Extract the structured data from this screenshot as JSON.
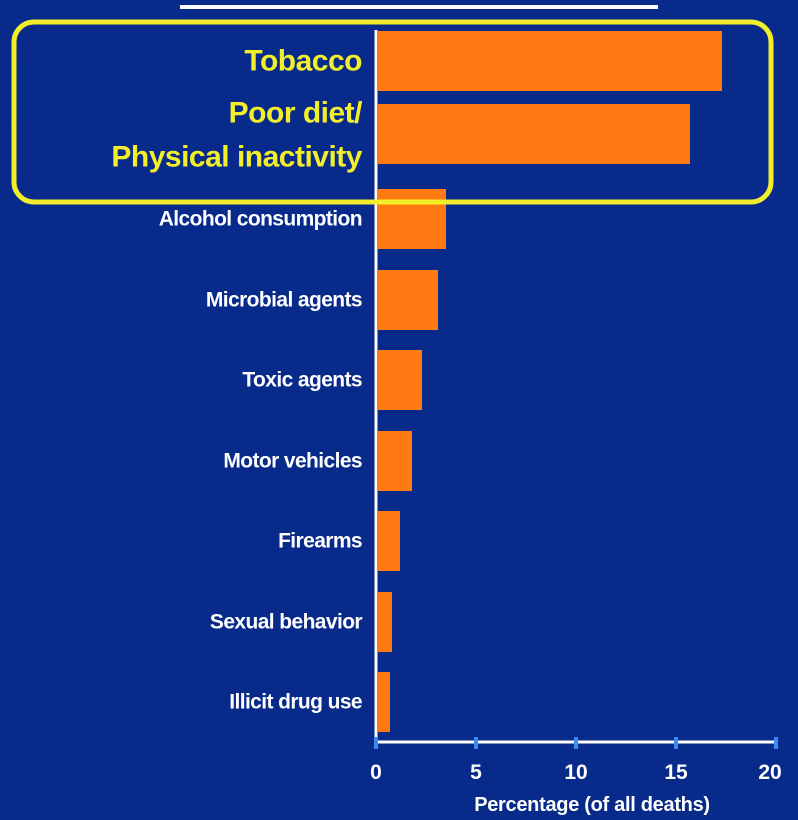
{
  "colors": {
    "background": "#082a8a",
    "bar": "#ff7a12",
    "axis": "#ffffff",
    "tick_mark": "#3a8af0",
    "highlight": "#f2ee2a",
    "label": "#ffffff"
  },
  "chart_data": {
    "type": "bar",
    "orientation": "horizontal",
    "categories": [
      "Tobacco",
      "Poor diet/ Physical inactivity",
      "Alcohol consumption",
      "Microbial agents",
      "Toxic agents",
      "Motor vehicles",
      "Firearms",
      "Sexual behavior",
      "Illicit drug use"
    ],
    "category_lines": [
      [
        "Tobacco"
      ],
      [
        "Poor diet/",
        "Physical inactivity"
      ],
      [
        "Alcohol consumption"
      ],
      [
        "Microbial agents"
      ],
      [
        "Toxic agents"
      ],
      [
        "Motor vehicles"
      ],
      [
        "Firearms"
      ],
      [
        "Sexual behavior"
      ],
      [
        "Illicit drug use"
      ]
    ],
    "values": [
      17.2,
      15.6,
      3.4,
      3.0,
      2.2,
      1.7,
      1.1,
      0.7,
      0.6
    ],
    "highlighted_categories": [
      "Tobacco",
      "Poor diet/ Physical inactivity"
    ],
    "xlabel": "Percentage (of all deaths)",
    "ylabel": "",
    "xlim": [
      0,
      20
    ],
    "xticks": [
      0,
      5,
      10,
      15,
      20
    ],
    "grid": false
  }
}
